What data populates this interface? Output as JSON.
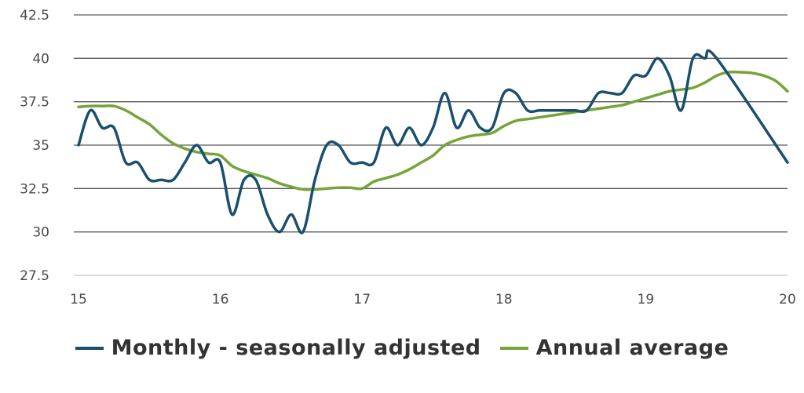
{
  "chart_data": {
    "type": "line",
    "title": "",
    "xlabel": "",
    "ylabel": "",
    "xlim": [
      15,
      20
    ],
    "ylim": [
      27.5,
      42.5
    ],
    "y_ticks": [
      "27.5",
      "30",
      "32.5",
      "35",
      "37.5",
      "40",
      "42.5"
    ],
    "x_ticks": [
      "15",
      "16",
      "17",
      "18",
      "19",
      "20"
    ],
    "grid": true,
    "legend_position": "bottom",
    "series": [
      {
        "name": "Monthly - seasonally adjusted",
        "color": "#1a4f6e",
        "x": [
          15.0,
          15.083,
          15.167,
          15.25,
          15.333,
          15.417,
          15.5,
          15.583,
          15.667,
          15.75,
          15.833,
          15.917,
          16.0,
          16.083,
          16.167,
          16.25,
          16.333,
          16.417,
          16.5,
          16.583,
          16.667,
          16.75,
          16.833,
          16.917,
          17.0,
          17.083,
          17.167,
          17.25,
          17.333,
          17.417,
          17.5,
          17.583,
          17.667,
          17.75,
          17.833,
          17.917,
          18.0,
          18.083,
          18.167,
          18.25,
          18.333,
          18.417,
          18.5,
          18.583,
          18.667,
          18.75,
          18.833,
          18.917,
          19.0,
          19.083,
          19.167,
          19.25,
          19.333,
          19.417,
          19.5,
          20.0
        ],
        "y": [
          35,
          37,
          36,
          36,
          34,
          34,
          33,
          33,
          33,
          34,
          35,
          34,
          34,
          31,
          33,
          33,
          31,
          30,
          31,
          30,
          33,
          35,
          35,
          34,
          34,
          34,
          36,
          35,
          36,
          35,
          36,
          38,
          36,
          37,
          36,
          36,
          38,
          38,
          37,
          37,
          37,
          37,
          37,
          37,
          38,
          38,
          38,
          39,
          39,
          40,
          39,
          37,
          40,
          40,
          40,
          34
        ]
      },
      {
        "name": "Annual average",
        "color": "#76a33a",
        "x": [
          15.0,
          15.083,
          15.167,
          15.25,
          15.333,
          15.417,
          15.5,
          15.583,
          15.667,
          15.75,
          15.833,
          15.917,
          16.0,
          16.083,
          16.167,
          16.25,
          16.333,
          16.417,
          16.5,
          16.583,
          16.667,
          16.75,
          16.833,
          16.917,
          17.0,
          17.083,
          17.167,
          17.25,
          17.333,
          17.417,
          17.5,
          17.583,
          17.667,
          17.75,
          17.833,
          17.917,
          18.0,
          18.083,
          18.167,
          18.25,
          18.333,
          18.417,
          18.5,
          18.583,
          18.667,
          18.75,
          18.833,
          18.917,
          19.0,
          19.083,
          19.167,
          19.25,
          19.333,
          19.417,
          19.5,
          19.583,
          19.667,
          19.75,
          19.833,
          19.917,
          20.0
        ],
        "y": [
          37.2,
          37.25,
          37.25,
          37.25,
          37.0,
          36.6,
          36.2,
          35.6,
          35.1,
          34.8,
          34.6,
          34.5,
          34.4,
          33.8,
          33.5,
          33.3,
          33.1,
          32.8,
          32.6,
          32.45,
          32.45,
          32.5,
          32.55,
          32.55,
          32.5,
          32.9,
          33.1,
          33.3,
          33.6,
          34.0,
          34.4,
          35.0,
          35.3,
          35.5,
          35.6,
          35.7,
          36.1,
          36.4,
          36.5,
          36.6,
          36.7,
          36.8,
          36.9,
          37.0,
          37.1,
          37.2,
          37.3,
          37.5,
          37.7,
          37.9,
          38.1,
          38.2,
          38.3,
          38.6,
          39.0,
          39.2,
          39.2,
          39.15,
          39.0,
          38.7,
          38.1
        ]
      }
    ]
  }
}
